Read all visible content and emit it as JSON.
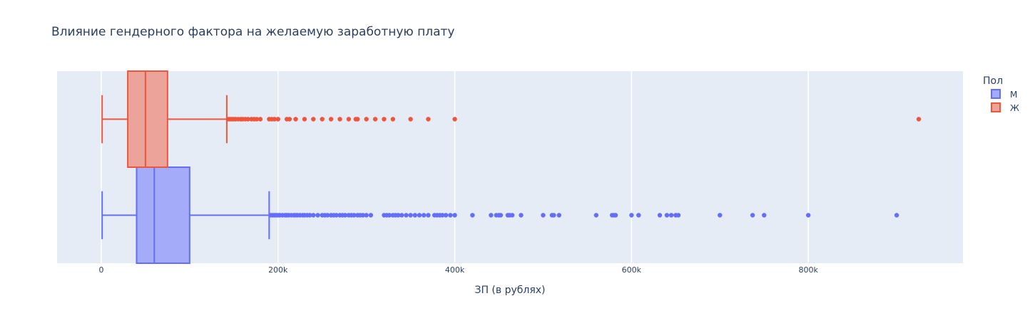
{
  "chart_data": {
    "type": "box",
    "orientation": "horizontal",
    "title": "Влияние гендерного фактора на желаемую заработную плату",
    "xlabel": "ЗП (в рублях)",
    "ylabel": "",
    "xlim": [
      -50000,
      975000
    ],
    "xticks": [
      {
        "value": 0,
        "label": "0"
      },
      {
        "value": 200000,
        "label": "200k"
      },
      {
        "value": 400000,
        "label": "400k"
      },
      {
        "value": 600000,
        "label": "600k"
      },
      {
        "value": 800000,
        "label": "800k"
      }
    ],
    "grid": true,
    "legend": {
      "title": "Пол",
      "placement": "top-right"
    },
    "series": [
      {
        "name": "М",
        "color": "#636efa",
        "fill": "#a4abf8",
        "min": 1000,
        "q1": 40000,
        "median": 60000,
        "q3": 100000,
        "upper_fence": 190000,
        "outliers": [
          192000,
          194000,
          196000,
          198000,
          200000,
          202000,
          205000,
          208000,
          210000,
          212000,
          215000,
          218000,
          220000,
          222000,
          225000,
          228000,
          230000,
          233000,
          236000,
          240000,
          245000,
          250000,
          253000,
          256000,
          260000,
          263000,
          266000,
          270000,
          273000,
          276000,
          280000,
          283000,
          286000,
          290000,
          293000,
          296000,
          300000,
          305000,
          320000,
          323000,
          326000,
          330000,
          333000,
          336000,
          340000,
          345000,
          350000,
          355000,
          360000,
          365000,
          370000,
          377000,
          380000,
          383000,
          386000,
          390000,
          395000,
          400000,
          420000,
          441000,
          447000,
          450000,
          452000,
          460000,
          462000,
          465000,
          475000,
          500000,
          510000,
          512000,
          518000,
          560000,
          578000,
          580000,
          582000,
          600000,
          608000,
          632000,
          640000,
          645000,
          650000,
          653000,
          700000,
          737000,
          750000,
          800000,
          900000
        ]
      },
      {
        "name": "Ж",
        "color": "#ef553b",
        "fill": "#eba39a",
        "min": 1000,
        "q1": 30000,
        "median": 50000,
        "q3": 75000,
        "upper_fence": 142000,
        "outliers": [
          144000,
          146000,
          148000,
          150000,
          152000,
          155000,
          158000,
          160000,
          163000,
          166000,
          170000,
          173000,
          176000,
          180000,
          190000,
          193000,
          196000,
          200000,
          210000,
          213000,
          220000,
          230000,
          240000,
          250000,
          260000,
          270000,
          280000,
          288000,
          290000,
          300000,
          310000,
          320000,
          330000,
          350000,
          370000,
          400000,
          925000
        ]
      }
    ]
  }
}
